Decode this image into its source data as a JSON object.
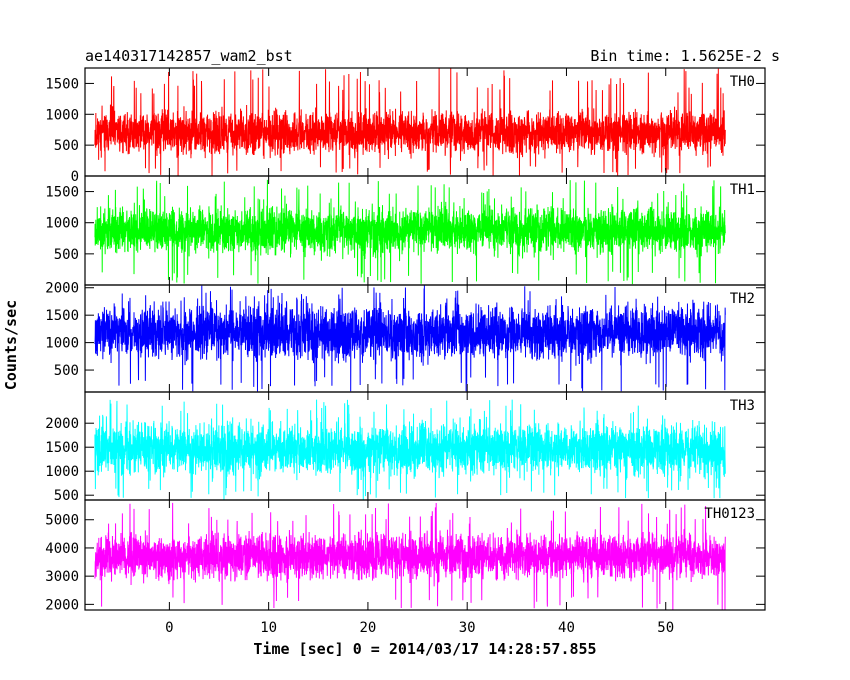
{
  "header": {
    "object_name": "ae140317142857_wam2_bst",
    "bin_time": "Bin time: 1.5625E-2 s"
  },
  "axes": {
    "xlabel": "Time [sec] 0 = 2014/03/17 14:28:57.855",
    "ylabel": "Counts/sec",
    "x_tick_labels": [
      "0",
      "10",
      "20",
      "30",
      "40",
      "50"
    ]
  },
  "chart_data": [
    {
      "type": "line",
      "panel_label": "TH0",
      "color": "#ff0000",
      "xlim": [
        -8.5,
        60
      ],
      "ylim": [
        0,
        1750
      ],
      "ytick_labels": [
        0,
        500,
        1000,
        1500
      ],
      "x": [
        -7.5,
        56
      ],
      "baseline": 700,
      "noise": 300,
      "spike_max": 1750,
      "n_points": 4065,
      "seed": 11
    },
    {
      "type": "line",
      "panel_label": "TH1",
      "color": "#00ff00",
      "xlim": [
        -8.5,
        60
      ],
      "ylim": [
        0,
        1750
      ],
      "ytick_labels": [
        500,
        1000,
        1500
      ],
      "x": [
        -7.5,
        56
      ],
      "baseline": 880,
      "noise": 330,
      "spike_max": 1700,
      "n_points": 4065,
      "seed": 23
    },
    {
      "type": "line",
      "panel_label": "TH2",
      "color": "#0000ff",
      "xlim": [
        -8.5,
        60
      ],
      "ylim": [
        100,
        2050
      ],
      "ytick_labels": [
        500,
        1000,
        1500,
        2000
      ],
      "x": [
        -7.5,
        56
      ],
      "baseline": 1180,
      "noise": 420,
      "spike_max": 2050,
      "n_points": 4065,
      "seed": 37
    },
    {
      "type": "line",
      "panel_label": "TH3",
      "color": "#00ffff",
      "xlim": [
        -8.5,
        60
      ],
      "ylim": [
        400,
        2650
      ],
      "ytick_labels": [
        500,
        1000,
        1500,
        2000
      ],
      "x": [
        -7.5,
        56
      ],
      "baseline": 1450,
      "noise": 460,
      "spike_max": 2500,
      "n_points": 4065,
      "seed": 41
    },
    {
      "type": "line",
      "panel_label": "TH0123",
      "color": "#ff00ff",
      "xlim": [
        -8.5,
        60
      ],
      "ylim": [
        1800,
        5700
      ],
      "ytick_labels": [
        2000,
        3000,
        4000,
        5000
      ],
      "x": [
        -7.5,
        56
      ],
      "baseline": 3700,
      "noise": 700,
      "spike_max": 5600,
      "n_points": 4065,
      "seed": 53
    }
  ]
}
